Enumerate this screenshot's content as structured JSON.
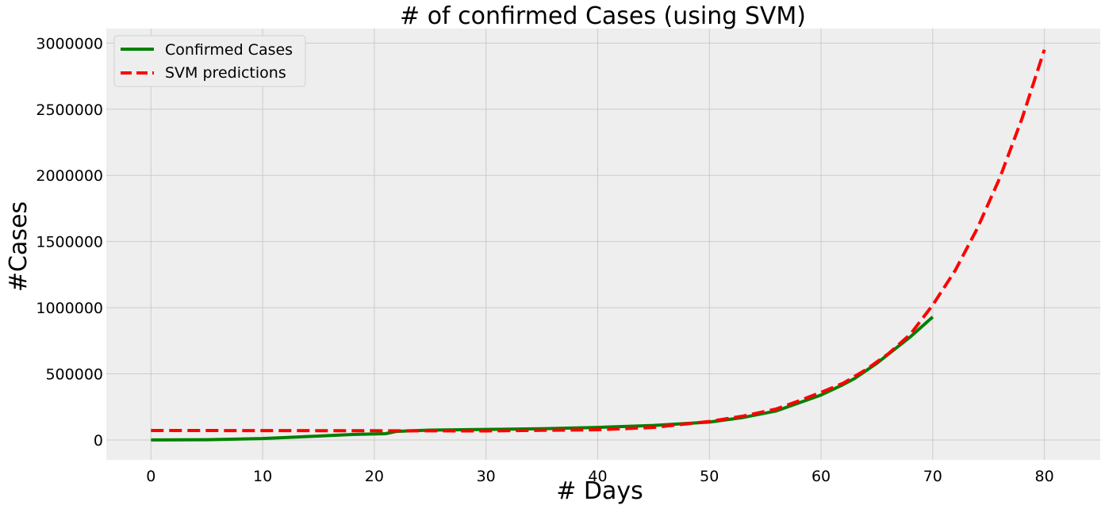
{
  "chart_data": {
    "type": "line",
    "title": "# of confirmed Cases (using SVM)",
    "xlabel": "# Days",
    "ylabel": "#Cases",
    "xlim": [
      -4,
      85
    ],
    "ylim": [
      -150000,
      3110000
    ],
    "xticks": [
      0,
      10,
      20,
      30,
      40,
      50,
      60,
      70,
      80
    ],
    "yticks": [
      0,
      500000,
      1000000,
      1500000,
      2000000,
      2500000,
      3000000
    ],
    "grid": true,
    "background": "#eeeeee",
    "legend_position": "top-left",
    "series": [
      {
        "name": "Confirmed Cases",
        "color": "#008000",
        "style": "solid",
        "x": [
          0,
          5,
          10,
          15,
          18,
          21,
          22,
          25,
          30,
          35,
          40,
          45,
          50,
          53,
          56,
          58,
          60,
          62,
          63,
          65,
          68,
          70
        ],
        "y": [
          555,
          2000,
          11000,
          30000,
          42000,
          48000,
          65000,
          75000,
          80000,
          85000,
          95000,
          110000,
          135000,
          170000,
          220000,
          280000,
          340000,
          420000,
          465000,
          580000,
          780000,
          930000
        ]
      },
      {
        "name": "SVM predictions",
        "color": "#ff0000",
        "style": "dashed",
        "x": [
          0,
          10,
          20,
          30,
          40,
          45,
          50,
          53,
          56,
          58,
          60,
          62,
          64,
          66,
          68,
          70,
          72,
          74,
          76,
          78,
          80
        ],
        "y": [
          72000,
          71000,
          70000,
          69000,
          78000,
          95000,
          140000,
          180000,
          235000,
          295000,
          360000,
          430000,
          530000,
          650000,
          800000,
          1020000,
          1280000,
          1600000,
          1980000,
          2430000,
          2950000
        ]
      }
    ]
  }
}
